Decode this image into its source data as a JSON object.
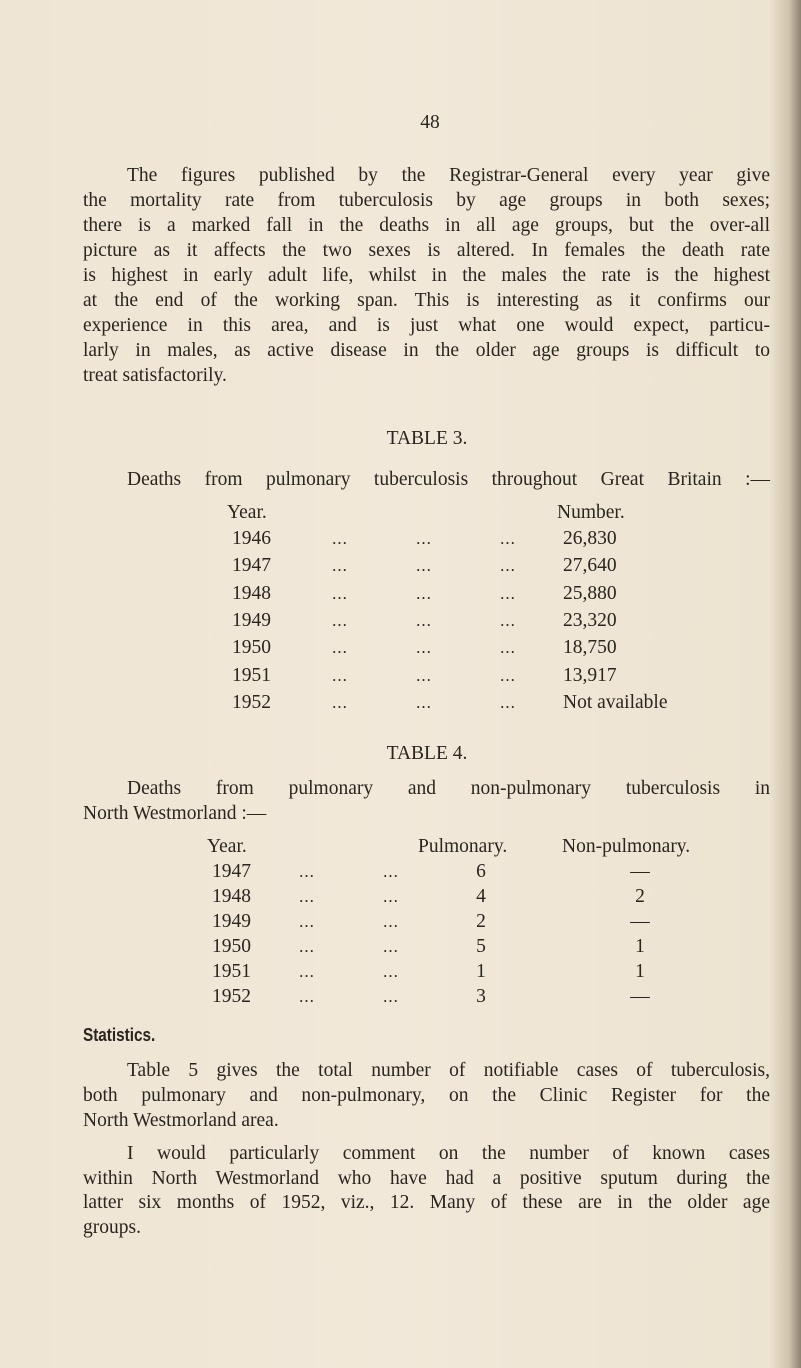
{
  "page_number": "48",
  "paragraph1": [
    "The figures published by the Registrar-General every year give",
    "the mortality rate from tuberculosis by age groups in both sexes;",
    "there is a marked fall in the deaths in all age groups, but the over-all",
    "picture as it affects the two sexes is altered.  In females the death rate",
    "is highest in early adult life, whilst in the males the rate is the highest",
    "at the end of the working span.  This is interesting as it confirms our",
    "experience in this area, and is just what one would expect, particu-",
    "larly in males, as active disease in the older age groups is difficult to",
    "treat satisfactorily."
  ],
  "table3": {
    "title": "TABLE 3.",
    "caption": "Deaths from pulmonary tuberculosis throughout Great Britain :—",
    "headers": {
      "year": "Year.",
      "number": "Number."
    },
    "leader": "...",
    "rows": [
      {
        "year": "1946",
        "number": "26,830"
      },
      {
        "year": "1947",
        "number": "27,640"
      },
      {
        "year": "1948",
        "number": "25,880"
      },
      {
        "year": "1949",
        "number": "23,320"
      },
      {
        "year": "1950",
        "number": "18,750"
      },
      {
        "year": "1951",
        "number": "13,917"
      },
      {
        "year": "1952",
        "number": "Not available"
      }
    ]
  },
  "table4": {
    "title": "TABLE 4.",
    "caption": [
      "Deaths from pulmonary and non-pulmonary tuberculosis in",
      "North Westmorland :—"
    ],
    "headers": {
      "year": "Year.",
      "pulmonary": "Pulmonary.",
      "non_pulmonary": "Non-pulmonary."
    },
    "leader": "...",
    "rows": [
      {
        "year": "1947",
        "pulmonary": "6",
        "non_pulmonary": "—"
      },
      {
        "year": "1948",
        "pulmonary": "4",
        "non_pulmonary": "2"
      },
      {
        "year": "1949",
        "pulmonary": "2",
        "non_pulmonary": "—"
      },
      {
        "year": "1950",
        "pulmonary": "5",
        "non_pulmonary": "1"
      },
      {
        "year": "1951",
        "pulmonary": "1",
        "non_pulmonary": "1"
      },
      {
        "year": "1952",
        "pulmonary": "3",
        "non_pulmonary": "—"
      }
    ]
  },
  "statistics": {
    "heading": "Statistics.",
    "paragraph1": [
      "Table 5 gives the total number of notifiable cases of tuberculosis,",
      "both pulmonary and non-pulmonary, on the Clinic Register for the",
      "North Westmorland area."
    ],
    "paragraph2": [
      "I would particularly comment on the number of known cases",
      "within North Westmorland who have had a positive sputum during the",
      "latter six months of 1952, viz., 12.  Many of these are in the older age",
      "groups."
    ]
  }
}
